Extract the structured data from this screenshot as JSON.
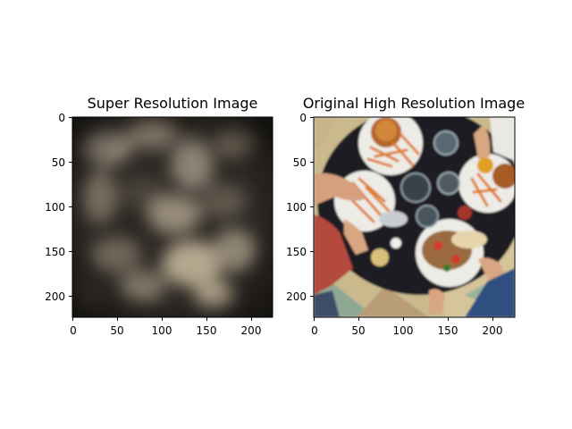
{
  "panels": [
    {
      "title": "Super Resolution Image",
      "image": "blurred low-detail reconstruction, brownish-grey tones",
      "x_ticks": [
        "0",
        "50",
        "100",
        "150",
        "200"
      ],
      "y_ticks": [
        "0",
        "50",
        "100",
        "150",
        "200"
      ]
    },
    {
      "title": "Original High Resolution Image",
      "image": "overhead photo of a restaurant table with burgers, fries, salad and drinks",
      "x_ticks": [
        "0",
        "50",
        "100",
        "150",
        "200"
      ],
      "y_ticks": [
        "0",
        "50",
        "100",
        "150",
        "200"
      ]
    }
  ],
  "axis_range": [
    0,
    224
  ]
}
